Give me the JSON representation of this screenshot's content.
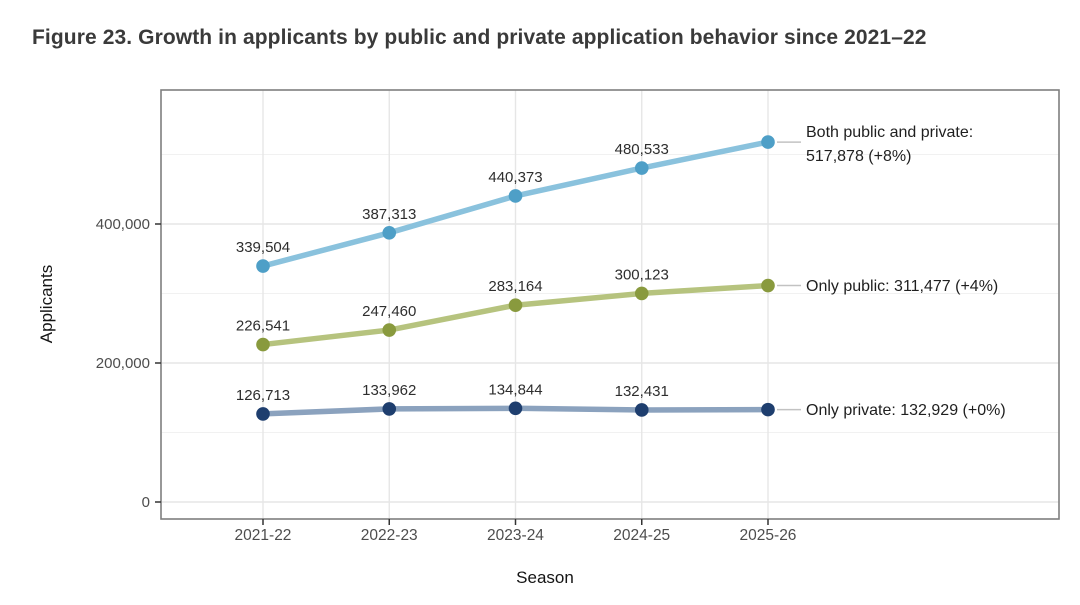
{
  "figure": {
    "title": "Figure 23. Growth in applicants by public and private application behavior since 2021–22"
  },
  "chart_data": {
    "type": "line",
    "title": "Figure 23. Growth in applicants by public and private application behavior since 2021–22",
    "x": [
      "2021-22",
      "2022-23",
      "2023-24",
      "2024-25",
      "2025-26"
    ],
    "xlabel": "Season",
    "ylabel": "Applicants",
    "ylim": [
      0,
      590000
    ],
    "yticks": [
      0,
      200000,
      400000
    ],
    "ytick_labels": [
      "0",
      "200,000",
      "400,000"
    ],
    "minor_yticks": [
      100000,
      300000,
      500000
    ],
    "grid": "on",
    "legend_position": "right-annotations",
    "colors": {
      "panel_border": "#7f7f7f",
      "major_grid": "#e6e6e6",
      "minor_grid": "#f1f1f1",
      "tick_mark": "#333333",
      "tick_label": "#4d4d4d",
      "axis_title": "#141414",
      "data_label": "#2e2e2e",
      "annotation_text": "#1f1f1f",
      "connector": "#c2c2c2"
    },
    "series": [
      {
        "name": "Both public and private",
        "values": [
          339504,
          387313,
          440373,
          480533,
          517878
        ],
        "point_labels": [
          "339,504",
          "387,313",
          "440,373",
          "480,533"
        ],
        "annotation_lines": [
          "Both public and private:",
          "517,878 (+8%)"
        ],
        "line_color": "#8ac2dd",
        "marker_color": "#4e9fc7"
      },
      {
        "name": "Only public",
        "values": [
          226541,
          247460,
          283164,
          300123,
          311477
        ],
        "point_labels": [
          "226,541",
          "247,460",
          "283,164",
          "300,123"
        ],
        "annotation_lines": [
          "Only public: 311,477 (+4%)"
        ],
        "line_color": "#b6c37e",
        "marker_color": "#899a3e"
      },
      {
        "name": "Only private",
        "values": [
          126713,
          133962,
          134844,
          132431,
          132929
        ],
        "point_labels": [
          "126,713",
          "133,962",
          "134,844",
          "132,431"
        ],
        "annotation_lines": [
          "Only private: 132,929 (+0%)"
        ],
        "line_color": "#8ba2be",
        "marker_color": "#1e3e6e"
      }
    ]
  }
}
